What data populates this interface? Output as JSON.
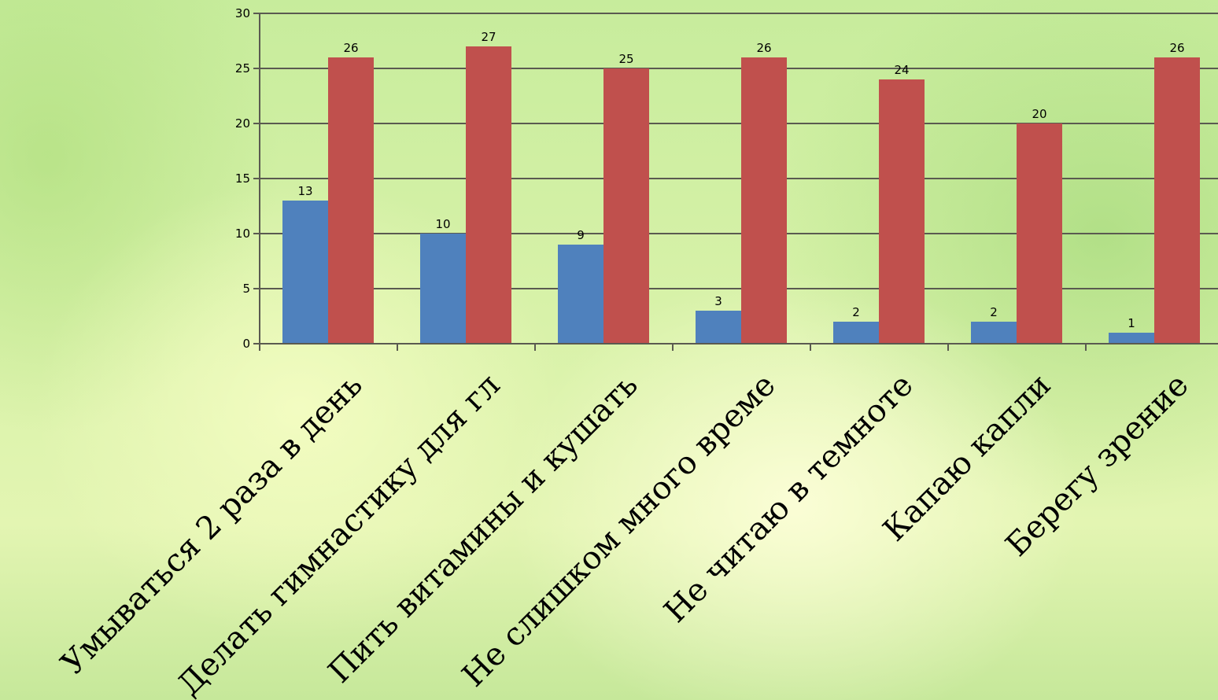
{
  "chart_data": {
    "type": "bar",
    "categories": [
      "Умываться 2 раза в день",
      "Делать гимнастику для гл",
      "Пить витамины и кушать",
      "Не слишком много време",
      "Не читаю в темноте",
      "Капаю капли",
      "Берегу зрение"
    ],
    "series": [
      {
        "values": [
          13,
          10,
          9,
          3,
          2,
          2,
          1
        ],
        "color": "#4f81bd"
      },
      {
        "values": [
          26,
          27,
          25,
          26,
          24,
          20,
          26
        ],
        "color": "#c0504d"
      }
    ],
    "ylim": [
      0,
      30
    ],
    "yticks": [
      0,
      5,
      10,
      15,
      20,
      25,
      30
    ],
    "grid": true,
    "legend": "none"
  }
}
